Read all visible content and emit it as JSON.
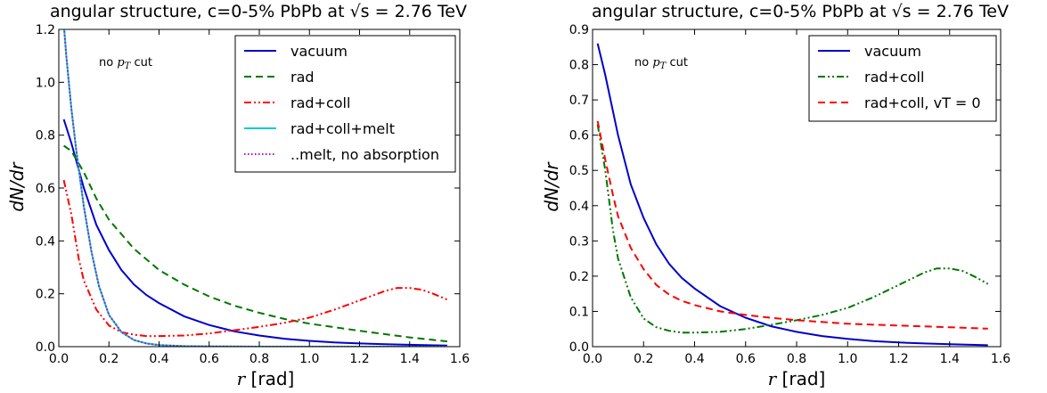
{
  "chart_data": [
    {
      "type": "line",
      "title": "angular structure, c=0-5% PbPb at √s = 2.76 TeV",
      "xlabel": "r [rad]",
      "ylabel": "dN/dr",
      "xlim": [
        0,
        1.6
      ],
      "ylim": [
        0,
        1.2
      ],
      "xticks": [
        0.0,
        0.2,
        0.4,
        0.6,
        0.8,
        1.0,
        1.2,
        1.4,
        1.6
      ],
      "xtick_labels": [
        "0.0",
        "0.2",
        "0.4",
        "0.6",
        "0.8",
        "1.0",
        "1.2",
        "1.4",
        "1.6"
      ],
      "yticks": [
        0.0,
        0.2,
        0.4,
        0.6,
        0.8,
        1.0,
        1.2
      ],
      "ytick_labels": [
        "0.0",
        "0.2",
        "0.4",
        "0.6",
        "0.8",
        "1.0",
        "1.2"
      ],
      "annotation": "no pT cut",
      "legend_position": "top-right",
      "grid": false,
      "series": [
        {
          "name": "vacuum",
          "color": "#0000cc",
          "dash": "solid",
          "x": [
            0.02,
            0.05,
            0.1,
            0.15,
            0.2,
            0.25,
            0.3,
            0.35,
            0.4,
            0.5,
            0.6,
            0.7,
            0.8,
            0.9,
            1.0,
            1.1,
            1.2,
            1.3,
            1.4,
            1.5,
            1.55
          ],
          "y": [
            0.86,
            0.77,
            0.6,
            0.46,
            0.365,
            0.29,
            0.235,
            0.195,
            0.165,
            0.115,
            0.082,
            0.058,
            0.042,
            0.03,
            0.022,
            0.016,
            0.012,
            0.009,
            0.007,
            0.005,
            0.004
          ]
        },
        {
          "name": "rad",
          "color": "#007700",
          "dash": "8,5",
          "x": [
            0.02,
            0.05,
            0.1,
            0.15,
            0.2,
            0.3,
            0.4,
            0.5,
            0.6,
            0.7,
            0.8,
            0.9,
            1.0,
            1.2,
            1.4,
            1.55
          ],
          "y": [
            0.76,
            0.74,
            0.66,
            0.56,
            0.48,
            0.37,
            0.29,
            0.235,
            0.19,
            0.155,
            0.128,
            0.105,
            0.087,
            0.06,
            0.035,
            0.02
          ]
        },
        {
          "name": "rad+coll",
          "color": "#ff0000",
          "dash": "8,3,2,3,2,3",
          "x": [
            0.02,
            0.05,
            0.08,
            0.1,
            0.15,
            0.2,
            0.25,
            0.3,
            0.35,
            0.4,
            0.5,
            0.6,
            0.7,
            0.8,
            0.9,
            1.0,
            1.1,
            1.2,
            1.3,
            1.35,
            1.4,
            1.45,
            1.5,
            1.55
          ],
          "y": [
            0.63,
            0.5,
            0.33,
            0.25,
            0.14,
            0.08,
            0.055,
            0.045,
            0.04,
            0.04,
            0.042,
            0.05,
            0.062,
            0.075,
            0.09,
            0.11,
            0.14,
            0.175,
            0.21,
            0.222,
            0.222,
            0.215,
            0.198,
            0.178
          ]
        },
        {
          "name": "rad+coll+melt",
          "color": "#00cccc",
          "dash": "solid",
          "x": [
            0.02,
            0.03,
            0.05,
            0.07,
            0.1,
            0.13,
            0.16,
            0.2,
            0.25,
            0.3,
            0.35,
            0.4,
            0.5,
            0.6,
            0.8,
            1.0,
            1.2,
            1.4,
            1.55
          ],
          "y": [
            1.22,
            1.1,
            0.9,
            0.74,
            0.53,
            0.36,
            0.23,
            0.12,
            0.055,
            0.025,
            0.012,
            0.006,
            0.002,
            0.001,
            0.0,
            0.0,
            0.0,
            0.0,
            0.0
          ]
        },
        {
          "name": "..melt, no absorption",
          "color": "#bb00bb",
          "dash": "1.5,2.5",
          "x": [
            0.02,
            0.03,
            0.05,
            0.07,
            0.1,
            0.13,
            0.16,
            0.2,
            0.25,
            0.3,
            0.35,
            0.4,
            0.5,
            0.6,
            0.8,
            1.0,
            1.2,
            1.4,
            1.55
          ],
          "y": [
            1.22,
            1.1,
            0.9,
            0.74,
            0.53,
            0.36,
            0.23,
            0.12,
            0.055,
            0.025,
            0.012,
            0.006,
            0.002,
            0.001,
            0.0,
            0.0,
            0.0,
            0.0,
            0.0
          ]
        }
      ]
    },
    {
      "type": "line",
      "title": "angular structure, c=0-5% PbPb at √s = 2.76 TeV",
      "xlabel": "r [rad]",
      "ylabel": "dN/dr",
      "xlim": [
        0,
        1.6
      ],
      "ylim": [
        0,
        0.9
      ],
      "xticks": [
        0.0,
        0.2,
        0.4,
        0.6,
        0.8,
        1.0,
        1.2,
        1.4,
        1.6
      ],
      "xtick_labels": [
        "0.0",
        "0.2",
        "0.4",
        "0.6",
        "0.8",
        "1.0",
        "1.2",
        "1.4",
        "1.6"
      ],
      "yticks": [
        0.0,
        0.1,
        0.2,
        0.3,
        0.4,
        0.5,
        0.6,
        0.7,
        0.8,
        0.9
      ],
      "ytick_labels": [
        "0.0",
        "0.1",
        "0.2",
        "0.3",
        "0.4",
        "0.5",
        "0.6",
        "0.7",
        "0.8",
        "0.9"
      ],
      "annotation": "no pT cut",
      "legend_position": "top-right",
      "grid": false,
      "series": [
        {
          "name": "vacuum",
          "color": "#0000cc",
          "dash": "solid",
          "x": [
            0.02,
            0.05,
            0.1,
            0.15,
            0.2,
            0.25,
            0.3,
            0.35,
            0.4,
            0.5,
            0.6,
            0.7,
            0.8,
            0.9,
            1.0,
            1.1,
            1.2,
            1.3,
            1.4,
            1.5,
            1.55
          ],
          "y": [
            0.86,
            0.77,
            0.6,
            0.46,
            0.365,
            0.29,
            0.235,
            0.195,
            0.165,
            0.115,
            0.082,
            0.058,
            0.042,
            0.03,
            0.022,
            0.016,
            0.012,
            0.009,
            0.007,
            0.005,
            0.004
          ]
        },
        {
          "name": "rad+coll",
          "color": "#007700",
          "dash": "8,3,2,3,2,3",
          "x": [
            0.02,
            0.05,
            0.08,
            0.1,
            0.15,
            0.2,
            0.25,
            0.3,
            0.35,
            0.4,
            0.5,
            0.6,
            0.7,
            0.8,
            0.9,
            1.0,
            1.1,
            1.2,
            1.3,
            1.35,
            1.4,
            1.45,
            1.5,
            1.55
          ],
          "y": [
            0.63,
            0.5,
            0.33,
            0.25,
            0.14,
            0.08,
            0.055,
            0.045,
            0.04,
            0.04,
            0.042,
            0.05,
            0.062,
            0.075,
            0.09,
            0.11,
            0.14,
            0.175,
            0.21,
            0.222,
            0.222,
            0.215,
            0.198,
            0.178
          ]
        },
        {
          "name": "rad+coll, vT = 0",
          "color": "#ff0000",
          "dash": "8,5",
          "x": [
            0.02,
            0.05,
            0.08,
            0.1,
            0.15,
            0.2,
            0.25,
            0.3,
            0.35,
            0.4,
            0.5,
            0.6,
            0.7,
            0.8,
            0.9,
            1.0,
            1.2,
            1.4,
            1.55
          ],
          "y": [
            0.64,
            0.53,
            0.43,
            0.37,
            0.28,
            0.22,
            0.175,
            0.148,
            0.13,
            0.118,
            0.1,
            0.09,
            0.082,
            0.075,
            0.07,
            0.065,
            0.06,
            0.055,
            0.051
          ]
        }
      ]
    }
  ]
}
